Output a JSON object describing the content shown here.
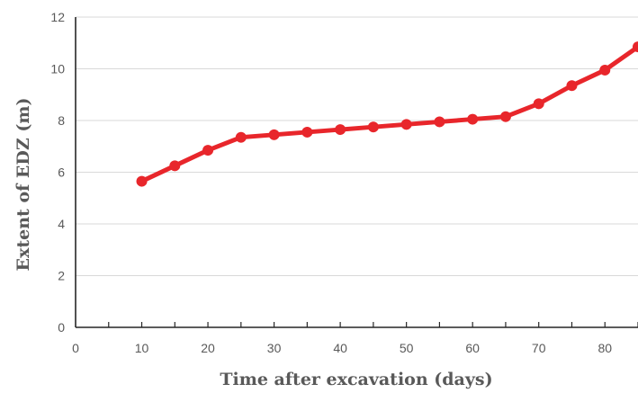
{
  "chart_data": {
    "type": "line",
    "xlabel": "Time after excavation (days)",
    "ylabel": "Extent of EDZ (m)",
    "xlim": [
      0,
      85
    ],
    "ylim": [
      0,
      12
    ],
    "x_ticks": [
      0,
      10,
      20,
      30,
      40,
      50,
      60,
      70,
      80
    ],
    "y_ticks": [
      0,
      2,
      4,
      6,
      8,
      10,
      12
    ],
    "grid": "horizontal",
    "series": [
      {
        "x": [
          10,
          15,
          20,
          25,
          30,
          35,
          40,
          45,
          50,
          55,
          60,
          65,
          70,
          75,
          80,
          85
        ],
        "y": [
          5.65,
          6.25,
          6.85,
          7.35,
          7.45,
          7.55,
          7.65,
          7.75,
          7.85,
          7.95,
          8.05,
          8.15,
          8.65,
          9.35,
          9.95,
          10.85
        ],
        "color": "#e8262b"
      }
    ]
  }
}
